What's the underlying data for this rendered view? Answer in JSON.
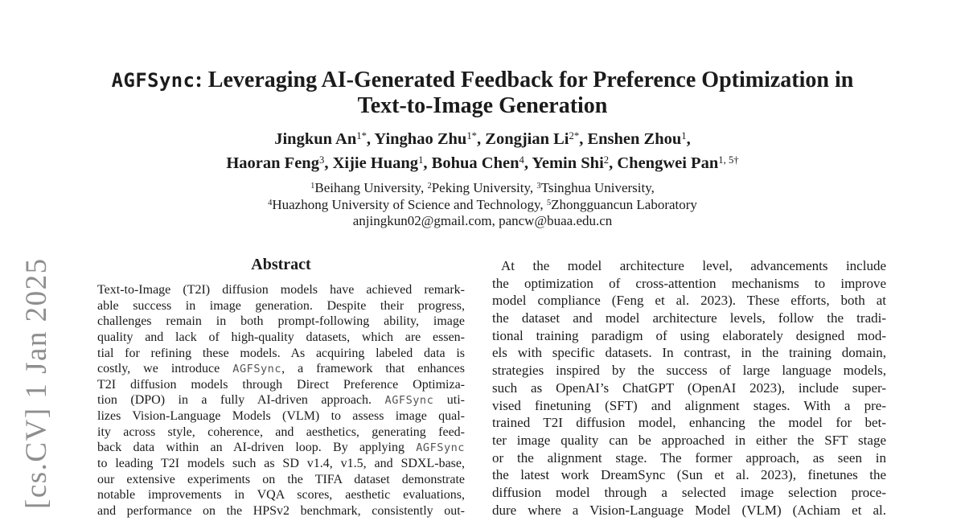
{
  "typography": {
    "mono_token": "AGFSync"
  },
  "colors": {
    "text_black": "#1b1b1b",
    "watermark_gray": "#8e8e8e",
    "code_gray": "#555555"
  },
  "watermark": {
    "label": "[cs.CV]  1 Jan 2025"
  },
  "title": {
    "lines": [
      [
        {
          "text": "AGFSync",
          "mono": true
        },
        {
          "text": ": Leveraging AI-Generated Feedback for Preference Optimization in"
        }
      ],
      [
        {
          "text": "Text-to-Image Generation"
        }
      ]
    ]
  },
  "authors": {
    "lines": [
      [
        {
          "text": "Jingkun An"
        },
        {
          "text": "1*",
          "sup": true
        },
        {
          "text": ", Yinghao Zhu"
        },
        {
          "text": "1*",
          "sup": true
        },
        {
          "text": ", Zongjian Li"
        },
        {
          "text": "2*",
          "sup": true
        },
        {
          "text": ", Enshen Zhou"
        },
        {
          "text": "1",
          "sup": true
        },
        {
          "text": ","
        }
      ],
      [
        {
          "text": "Haoran Feng"
        },
        {
          "text": "3",
          "sup": true
        },
        {
          "text": ", Xijie Huang"
        },
        {
          "text": "1",
          "sup": true
        },
        {
          "text": ", Bohua Chen"
        },
        {
          "text": "4",
          "sup": true
        },
        {
          "text": ", Yemin Shi"
        },
        {
          "text": "2",
          "sup": true
        },
        {
          "text": ", Chengwei Pan"
        },
        {
          "text": "1, 5†",
          "sup": true
        }
      ]
    ]
  },
  "affiliations": {
    "lines": [
      [
        {
          "text": "1",
          "sup": true
        },
        {
          "text": "Beihang University, "
        },
        {
          "text": "2",
          "sup": true
        },
        {
          "text": "Peking University, "
        },
        {
          "text": "3",
          "sup": true
        },
        {
          "text": "Tsinghua University,"
        }
      ],
      [
        {
          "text": "4",
          "sup": true
        },
        {
          "text": "Huazhong University of Science and Technology, "
        },
        {
          "text": "5",
          "sup": true
        },
        {
          "text": "Zhongguancun Laboratory"
        }
      ]
    ],
    "emails": "anjingkun02@gmail.com, pancw@buaa.edu.cn"
  },
  "abstract": {
    "heading": "Abstract",
    "lines": [
      "Text-to-Image (T2I) diffusion models have achieved remark-",
      "able success in image generation. Despite their progress,",
      "challenges remain in both prompt-following ability, image",
      "quality and lack of high-quality datasets, which are essen-",
      "tial for refining these models. As acquiring labeled data is",
      "costly, we introduce AGFSync, a framework that enhances",
      "T2I diffusion models through Direct Preference Optimiza-",
      "tion (DPO) in a fully AI-driven approach. AGFSync uti-",
      "lizes Vision-Language Models (VLM) to assess image qual-",
      "ity across style, coherence, and aesthetics, generating feed-",
      "back data within an AI-driven loop. By applying AGFSync",
      "to leading T2I models such as SD v1.4, v1.5, and SDXL-base,",
      "our extensive experiments on the TIFA dataset demonstrate",
      "notable improvements in VQA scores, aesthetic evaluations,",
      "and performance on the HPSv2 benchmark, consistently out-"
    ]
  },
  "body_column": {
    "lines": [
      "At the model architecture level, advancements include",
      "the optimization of cross-attention mechanisms to improve",
      "model compliance (Feng et al. 2023). These efforts, both at",
      "the dataset and model architecture levels, follow the tradi-",
      "tional training paradigm of using elaborately designed mod-",
      "els with specific datasets. In contrast, in the training domain,",
      "strategies inspired by the success of large language models,",
      "such as OpenAI’s ChatGPT (OpenAI 2023), include super-",
      "vised finetuning (SFT) and alignment stages. With a pre-",
      "trained T2I diffusion model, enhancing the model for bet-",
      "ter image quality can be approached in either the SFT stage",
      "or the alignment stage. The former approach, as seen in",
      "the latest work DreamSync (Sun et al. 2023), finetunes the",
      "diffusion model through a selected image selection proce-",
      "dure where a Vision-Language Model (VLM) (Achiam et al."
    ]
  }
}
